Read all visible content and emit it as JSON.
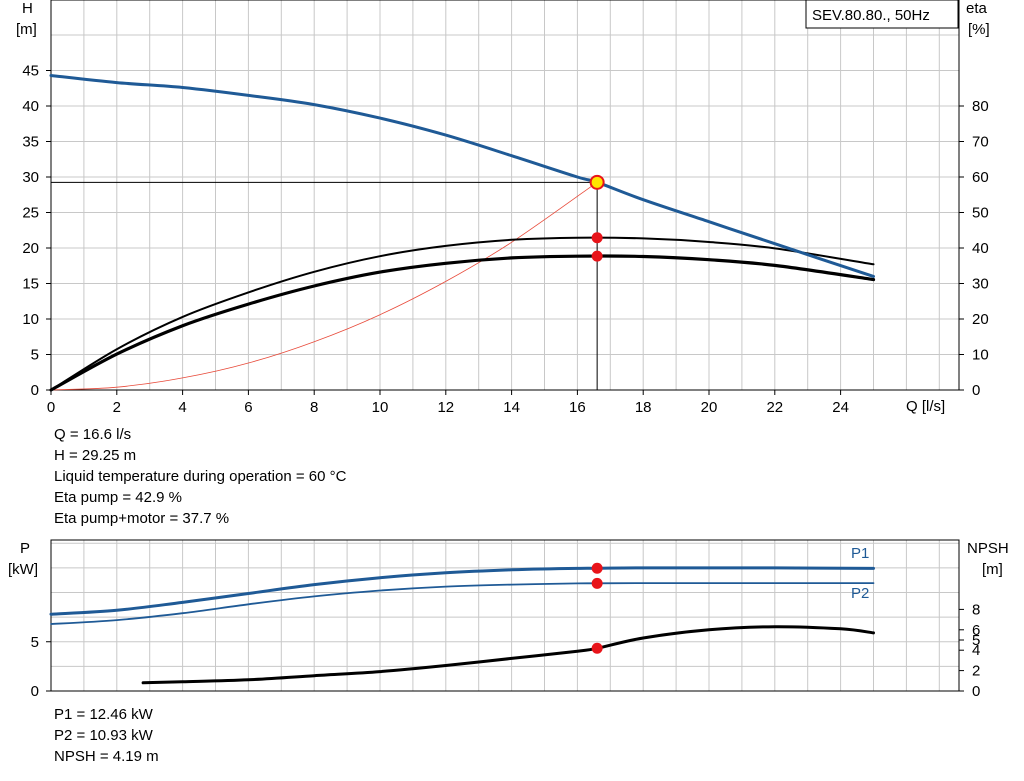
{
  "title_box": "SEV.80.80., 50Hz",
  "top_chart": {
    "left_axis_label": [
      "H",
      "[m]"
    ],
    "right_axis_label": [
      "eta",
      "[%]"
    ],
    "x_label": "Q [l/s]",
    "x_ticks": [
      "0",
      "2",
      "4",
      "6",
      "8",
      "10",
      "12",
      "14",
      "16",
      "18",
      "20",
      "22",
      "24"
    ],
    "y_ticks": [
      "0",
      "5",
      "10",
      "15",
      "20",
      "25",
      "30",
      "35",
      "40",
      "45"
    ],
    "eta_ticks": [
      "0",
      "10",
      "20",
      "30",
      "40",
      "50",
      "60",
      "70",
      "80"
    ]
  },
  "info_top": [
    "Q = 16.6 l/s",
    "H = 29.25 m",
    "Liquid temperature during operation = 60 °C",
    "Eta pump = 42.9 %",
    "Eta pump+motor = 37.7 %"
  ],
  "bottom_chart": {
    "left_axis_label": [
      "P",
      "[kW]"
    ],
    "right_axis_label": [
      "NPSH",
      "[m]"
    ],
    "p_ticks": [
      "0",
      "5"
    ],
    "npsh_ticks": [
      "0",
      "2",
      "4",
      "5",
      "6",
      "8"
    ],
    "series_labels": {
      "p1": "P1",
      "p2": "P2"
    }
  },
  "info_bottom": [
    "P1 = 12.46 kW",
    "P2 = 10.93 kW",
    "NPSH = 4.19 m"
  ],
  "colors": {
    "head_curve": "#1f5a96",
    "power_curve": "#1f5a96",
    "system_curve": "#e84a3a",
    "operating_point": "#e8141a",
    "duty_marker_fill": "#ffe400",
    "grid": "#c8c8c8"
  },
  "chart_data": [
    {
      "type": "line",
      "title": "SEV.80.80., 50Hz",
      "xlabel": "Q [l/s]",
      "ylabel": "H [m]",
      "y2label": "eta [%]",
      "xlim": [
        0,
        27.5
      ],
      "ylim": [
        0,
        50
      ],
      "y2lim": [
        0,
        100
      ],
      "grid": true,
      "series": [
        {
          "axis": "left",
          "x": [
            0,
            2,
            4,
            6,
            8,
            10,
            12,
            14,
            16,
            16.6,
            18,
            20,
            22,
            25
          ],
          "y": [
            44.3,
            43.3,
            42.6,
            41.5,
            40.2,
            38.3,
            35.9,
            33.0,
            30.0,
            29.25,
            26.8,
            23.7,
            20.6,
            16.0
          ]
        },
        {
          "axis": "right",
          "x": [
            0,
            2,
            4,
            6,
            8,
            10,
            12,
            14,
            16,
            18,
            20,
            22,
            25
          ],
          "y": [
            0,
            11.5,
            20.6,
            27.5,
            33.3,
            37.7,
            40.6,
            42.3,
            42.9,
            42.7,
            41.7,
            39.9,
            35.4
          ]
        },
        {
          "axis": "right",
          "x": [
            0,
            2,
            4,
            6,
            8,
            10,
            12,
            14,
            16,
            18,
            20,
            22,
            25
          ],
          "y": [
            0,
            10.1,
            18.1,
            24.2,
            29.3,
            33.2,
            35.7,
            37.2,
            37.7,
            37.6,
            36.7,
            35.1,
            31.1
          ]
        },
        {
          "axis": "left",
          "x": [
            0,
            2,
            4,
            6,
            8,
            10,
            12,
            14,
            16.6
          ],
          "y": [
            0,
            0.4,
            1.7,
            3.8,
            6.8,
            10.6,
            15.3,
            20.8,
            29.25
          ]
        }
      ],
      "operating_point": {
        "q": 16.6,
        "h": 29.25,
        "eta_pump": 42.9,
        "eta_pump_motor": 37.7
      }
    },
    {
      "type": "line",
      "ylabel": "P [kW]",
      "y2label": "NPSH [m]",
      "xlim": [
        0,
        27.5
      ],
      "grid": true,
      "series": [
        {
          "name": "P1",
          "axis": "left",
          "x": [
            0,
            2,
            4,
            6,
            8,
            10,
            12,
            14,
            16,
            16.6,
            18,
            20,
            22,
            25
          ],
          "y": [
            7.8,
            8.2,
            9.0,
            9.9,
            10.8,
            11.5,
            12.0,
            12.3,
            12.45,
            12.46,
            12.5,
            12.5,
            12.5,
            12.45
          ]
        },
        {
          "name": "P2",
          "axis": "left",
          "x": [
            0,
            2,
            4,
            6,
            8,
            10,
            12,
            14,
            16,
            16.6,
            18,
            20,
            22,
            25
          ],
          "y": [
            6.8,
            7.2,
            7.9,
            8.8,
            9.6,
            10.2,
            10.6,
            10.8,
            10.92,
            10.93,
            10.95,
            10.95,
            10.95,
            10.95
          ]
        },
        {
          "axis": "right",
          "x": [
            2.8,
            4,
            6,
            8,
            10,
            12,
            14,
            16,
            16.6,
            18,
            20,
            22,
            24,
            25
          ],
          "y": [
            0.8,
            0.9,
            1.1,
            1.5,
            1.9,
            2.5,
            3.2,
            3.9,
            4.19,
            5.2,
            6.0,
            6.3,
            6.1,
            5.7
          ]
        }
      ],
      "operating_point": {
        "p1": 12.46,
        "p2": 10.93,
        "npsh": 4.19
      }
    }
  ]
}
